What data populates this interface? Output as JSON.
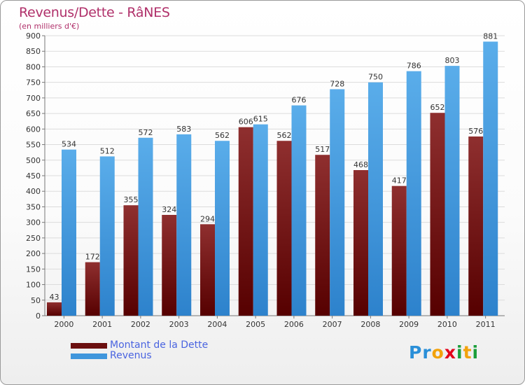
{
  "header": {
    "title": "Revenus/Dette - RâNES",
    "subtitle": "(en milliers d'€)"
  },
  "chart_data": {
    "type": "bar",
    "categories": [
      "2000",
      "2001",
      "2002",
      "2003",
      "2004",
      "2005",
      "2006",
      "2007",
      "2008",
      "2009",
      "2010",
      "2011"
    ],
    "series": [
      {
        "name": "Montant de la Dette",
        "color": "#7a1e1e",
        "values": [
          43,
          172,
          355,
          324,
          294,
          606,
          562,
          517,
          468,
          417,
          652,
          576
        ]
      },
      {
        "name": "Revenus",
        "color": "#4fa3e3",
        "values": [
          534,
          512,
          572,
          583,
          562,
          615,
          676,
          728,
          750,
          786,
          803,
          881
        ]
      }
    ],
    "ylim": [
      0,
      900
    ],
    "yticks": [
      0,
      50,
      100,
      150,
      200,
      250,
      300,
      350,
      400,
      450,
      500,
      550,
      600,
      650,
      700,
      750,
      800,
      850,
      900
    ],
    "grid": true,
    "legend_position": "bottom-left"
  },
  "legend": {
    "items": [
      {
        "label": "Montant de la Dette",
        "color": "#6b0f0f"
      },
      {
        "label": "Revenus",
        "color": "#3f96dc"
      }
    ]
  },
  "brand": {
    "letters": [
      "P",
      "r",
      "o",
      "x",
      "i",
      "t",
      "i"
    ],
    "colors": [
      "#2a8fd8",
      "#2a8fd8",
      "#f2a20c",
      "#e2001a",
      "#1a9e3a",
      "#f2a20c",
      "#1a9e3a"
    ]
  }
}
